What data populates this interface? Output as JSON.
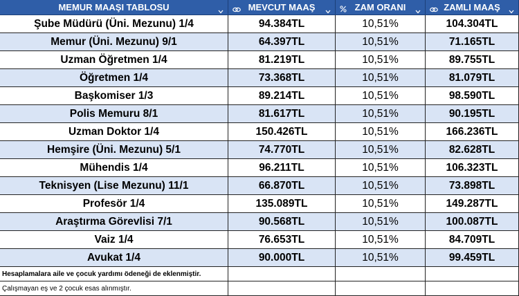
{
  "table": {
    "header": [
      "MEMUR MAAŞI TABLOSU",
      "MEVCUT MAAŞ",
      "ZAM ORANI",
      "ZAMLI MAAŞ"
    ],
    "rows": [
      [
        "Şube Müdürü (Üni. Mezunu) 1/4",
        "94.384TL",
        "10,51%",
        "104.304TL"
      ],
      [
        "Memur (Üni. Mezunu) 9/1",
        "64.397TL",
        "10,51%",
        "71.165TL"
      ],
      [
        "Uzman Öğretmen 1/4",
        "81.219TL",
        "10,51%",
        "89.755TL"
      ],
      [
        "Öğretmen 1/4",
        "73.368TL",
        "10,51%",
        "81.079TL"
      ],
      [
        "Başkomiser 1/3",
        "89.214TL",
        "10,51%",
        "98.590TL"
      ],
      [
        "Polis Memuru 8/1",
        "81.617TL",
        "10,51%",
        "90.195TL"
      ],
      [
        "Uzman Doktor 1/4",
        "150.426TL",
        "10,51%",
        "166.236TL"
      ],
      [
        "Hemşire (Üni. Mezunu) 5/1",
        "74.770TL",
        "10,51%",
        "82.628TL"
      ],
      [
        "Mühendis 1/4",
        "96.211TL",
        "10,51%",
        "106.323TL"
      ],
      [
        "Teknisyen (Lise Mezunu) 11/1",
        "66.870TL",
        "10,51%",
        "73.898TL"
      ],
      [
        "Profesör 1/4",
        "135.089TL",
        "10,51%",
        "149.287TL"
      ],
      [
        "Araştırma Görevlisi 7/1",
        "90.568TL",
        "10,51%",
        "100.087TL"
      ],
      [
        "Vaiz 1/4",
        "76.653TL",
        "10,51%",
        "84.709TL"
      ],
      [
        "Avukat 1/4",
        "90.000TL",
        "10,51%",
        "99.459TL"
      ]
    ],
    "notes": [
      "Hesaplamalara aile ve çocuk yardımı ödeneği de eklenmiştir.",
      "Çalışmayan eş ve 2 çocuk esas alınmıştır."
    ]
  }
}
